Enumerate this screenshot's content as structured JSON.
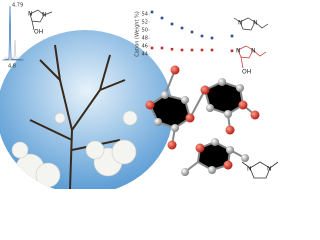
{
  "chart_data": {
    "type": "scatter",
    "y_label": "Cation (Weight %)",
    "categories": [
      null,
      null,
      null,
      null,
      null,
      null,
      null,
      null,
      null
    ],
    "series": [
      {
        "color": "#2b4a9c",
        "values": [
          54.5,
          53,
          51.5,
          50.5,
          49.5,
          48.5,
          48,
          null,
          48.5
        ]
      },
      {
        "color": "#c0302b",
        "values": [
          45.5,
          45.5,
          45.2,
          45,
          45,
          45,
          45,
          null,
          44.8
        ]
      }
    ],
    "ylim": [
      43,
      55
    ],
    "yticks": [
      44,
      46,
      48,
      50,
      52,
      54
    ]
  },
  "nmr": {
    "peak_label": "4.79",
    "axis_label": "4.8"
  },
  "structures": {
    "top_left": [
      "N",
      "N",
      "OH"
    ],
    "right_blue": [
      "N",
      "N"
    ],
    "right_red": [
      "N",
      "N",
      "OH"
    ],
    "bottom": [
      "N",
      "N"
    ]
  }
}
